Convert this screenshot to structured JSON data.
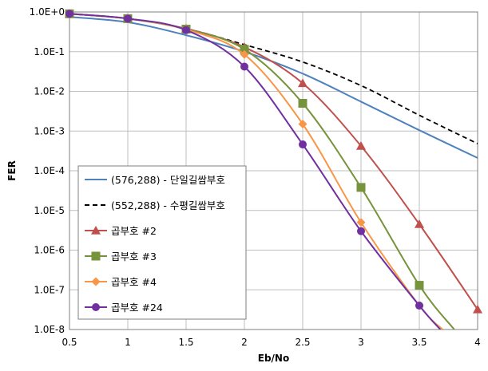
{
  "chart_data": {
    "type": "line",
    "xlabel": "Eb/No",
    "ylabel": "FER",
    "xlim": [
      0.5,
      4
    ],
    "ylim": [
      1e-08,
      1
    ],
    "yscale": "log",
    "x_ticks": [
      "0.5",
      "1",
      "1.5",
      "2",
      "2.5",
      "3",
      "3.5",
      "4"
    ],
    "y_ticks": [
      "1.0E+0",
      "1.0E-1",
      "1.0E-2",
      "1.0E-3",
      "1.0E-4",
      "1.0E-5",
      "1.0E-6",
      "1.0E-7",
      "1.0E-8"
    ],
    "grid": true,
    "legend_position": "bottom-left",
    "series": [
      {
        "name": "(576,288) - 단일길쌈부호",
        "color": "#4f81bd",
        "dash": "solid",
        "marker": "none",
        "x": [
          0.5,
          1,
          1.5,
          2,
          2.5,
          3,
          3.5,
          4
        ],
        "y": [
          0.75,
          0.55,
          0.26,
          0.1,
          0.028,
          0.0055,
          0.00105,
          0.00021
        ]
      },
      {
        "name": "(552,288) - 수평길쌈부호",
        "color": "#000000",
        "dash": "dashed",
        "marker": "none",
        "x": [
          0.5,
          1,
          1.5,
          2,
          2.5,
          3,
          3.5,
          4
        ],
        "y": [
          0.9,
          0.68,
          0.38,
          0.15,
          0.055,
          0.014,
          0.0025,
          0.00048
        ]
      },
      {
        "name": "곱부호 #2",
        "color": "#c0504d",
        "dash": "solid",
        "marker": "triangle",
        "x": [
          0.5,
          1,
          1.5,
          2,
          2.5,
          3,
          3.5,
          4
        ],
        "y": [
          0.9,
          0.68,
          0.38,
          0.13,
          0.016,
          0.00042,
          4.5e-06,
          3.2e-08
        ]
      },
      {
        "name": "곱부호 #3",
        "color": "#77933c",
        "dash": "solid",
        "marker": "square",
        "x": [
          0.5,
          1,
          1.5,
          2,
          2.5,
          3,
          3.5,
          3.8
        ],
        "y": [
          0.9,
          0.68,
          0.37,
          0.115,
          0.005,
          3.8e-05,
          1.3e-07,
          1e-08
        ]
      },
      {
        "name": "곱부호 #4",
        "color": "#f79646",
        "dash": "solid",
        "marker": "diamond",
        "x": [
          0.5,
          1,
          1.5,
          2,
          2.5,
          3,
          3.5,
          3.7
        ],
        "y": [
          0.9,
          0.68,
          0.36,
          0.085,
          0.0015,
          5e-06,
          4e-08,
          1e-08
        ]
      },
      {
        "name": "곱부호 #24",
        "color": "#7030a0",
        "dash": "solid",
        "marker": "circle",
        "x": [
          0.5,
          1,
          1.5,
          2,
          2.5,
          3,
          3.5,
          3.68
        ],
        "y": [
          0.9,
          0.68,
          0.35,
          0.042,
          0.00046,
          3e-06,
          4e-08,
          1e-08
        ]
      }
    ]
  }
}
